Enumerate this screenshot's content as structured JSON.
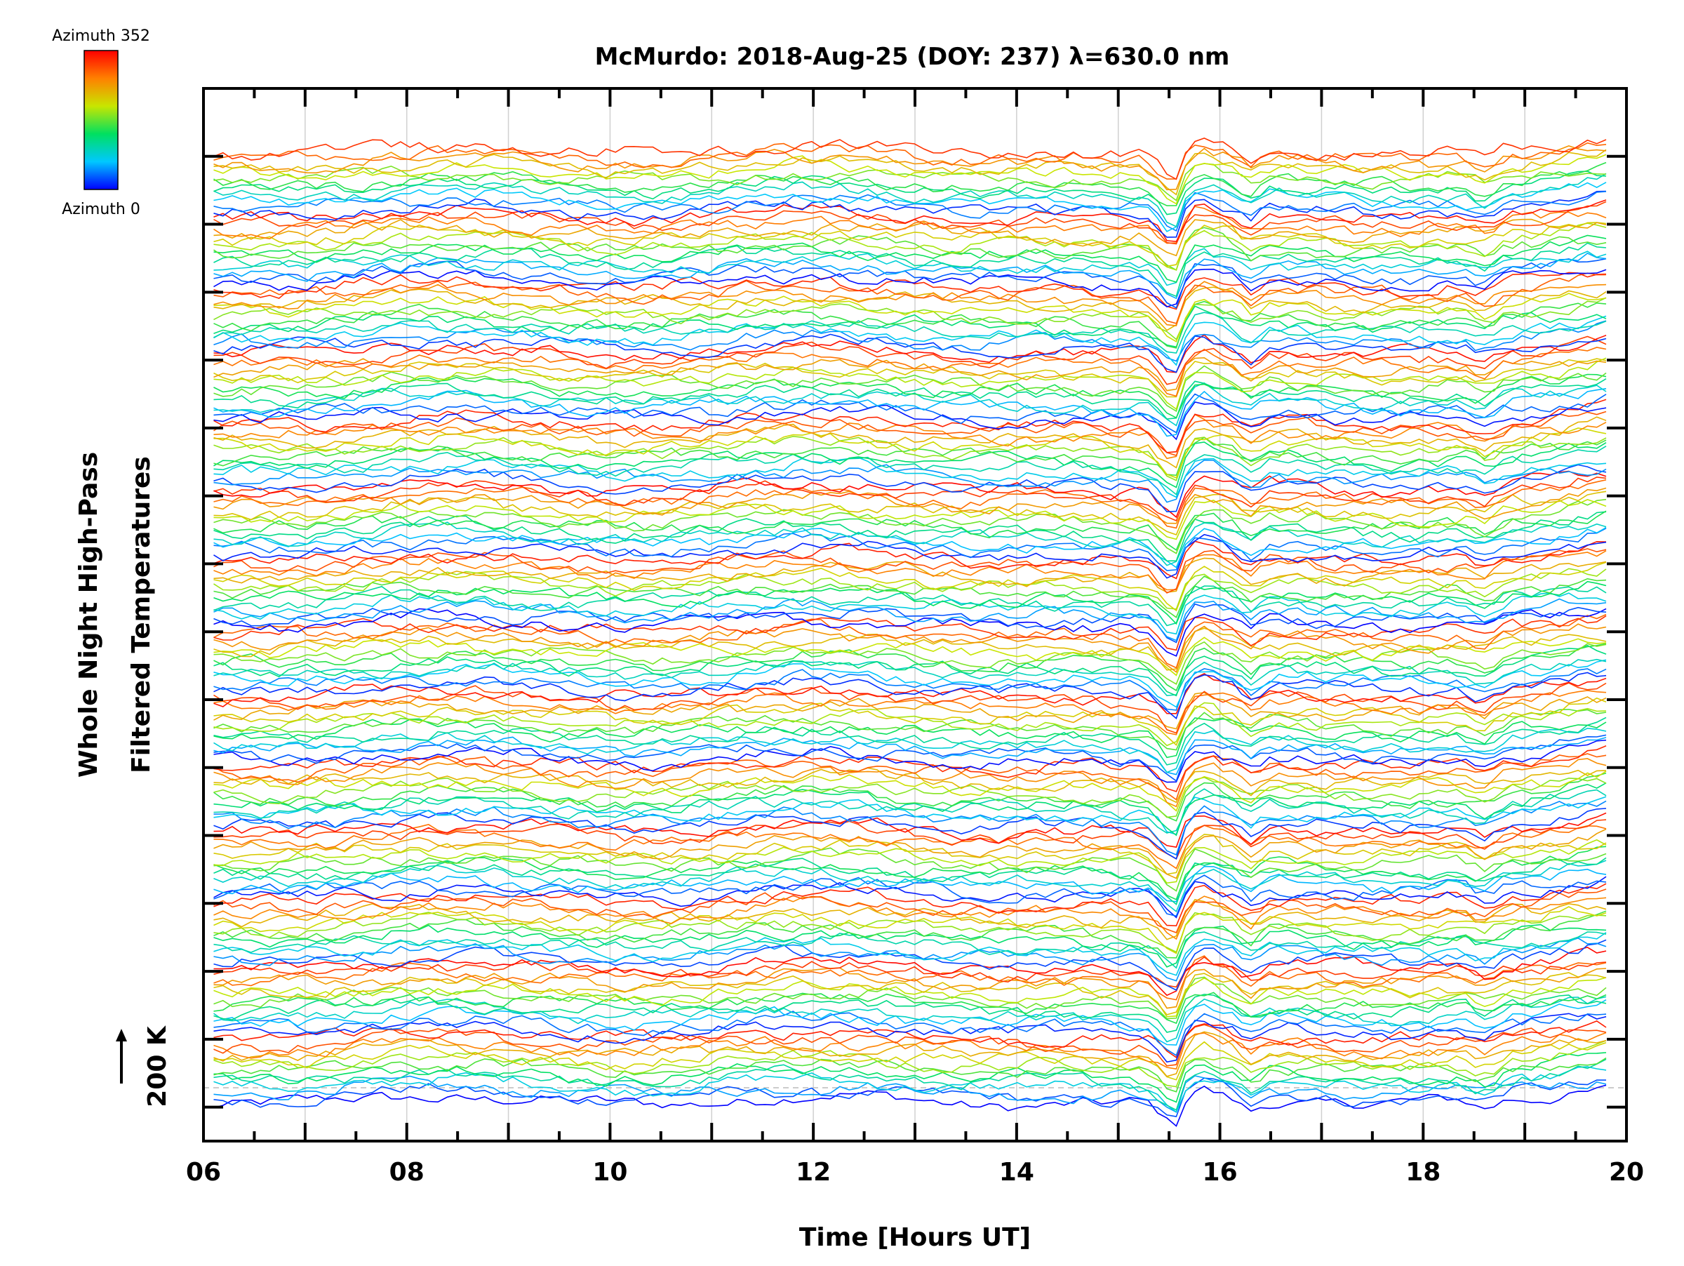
{
  "chart_data": {
    "type": "line",
    "title": "McMurdo: 2018-Aug-25 (DOY: 237) λ=630.0 nm",
    "xlabel": "Time [Hours UT]",
    "ylabel_line1": "Whole Night High-Pass",
    "ylabel_line2": "Filtered Temperatures",
    "scale_label": "200 K",
    "xlim": [
      6,
      20
    ],
    "x_ticks": [
      {
        "value": 6,
        "label": "06"
      },
      {
        "value": 8,
        "label": "08"
      },
      {
        "value": 10,
        "label": "10"
      },
      {
        "value": 12,
        "label": "12"
      },
      {
        "value": 14,
        "label": "14"
      },
      {
        "value": 16,
        "label": "16"
      },
      {
        "value": 18,
        "label": "18"
      },
      {
        "value": 20,
        "label": "20"
      }
    ],
    "x_minor_step": 0.5,
    "grid_x_step": 1,
    "ylim": [
      -50,
      1500
    ],
    "y_tick_step": 100,
    "colorbar": {
      "label_top": "Azimuth 352",
      "label_bottom": "Azimuth 0",
      "colormap": "rainbow",
      "colors": [
        "#0000ff",
        "#00c8ff",
        "#00e060",
        "#c8e600",
        "#ff8000",
        "#ff0000"
      ]
    },
    "series_description": "Stacked high-pass filtered temperature time series, one per azimuth (0 to 352), each offset vertically and coloured by azimuth; 200 K scale bar marks the offset unit",
    "series_count": 176,
    "azimuth_range": [
      0,
      352
    ],
    "offset_per_series_K": 8,
    "time_start_h": 6.1,
    "time_end_h": 19.8,
    "samples": 150
  }
}
